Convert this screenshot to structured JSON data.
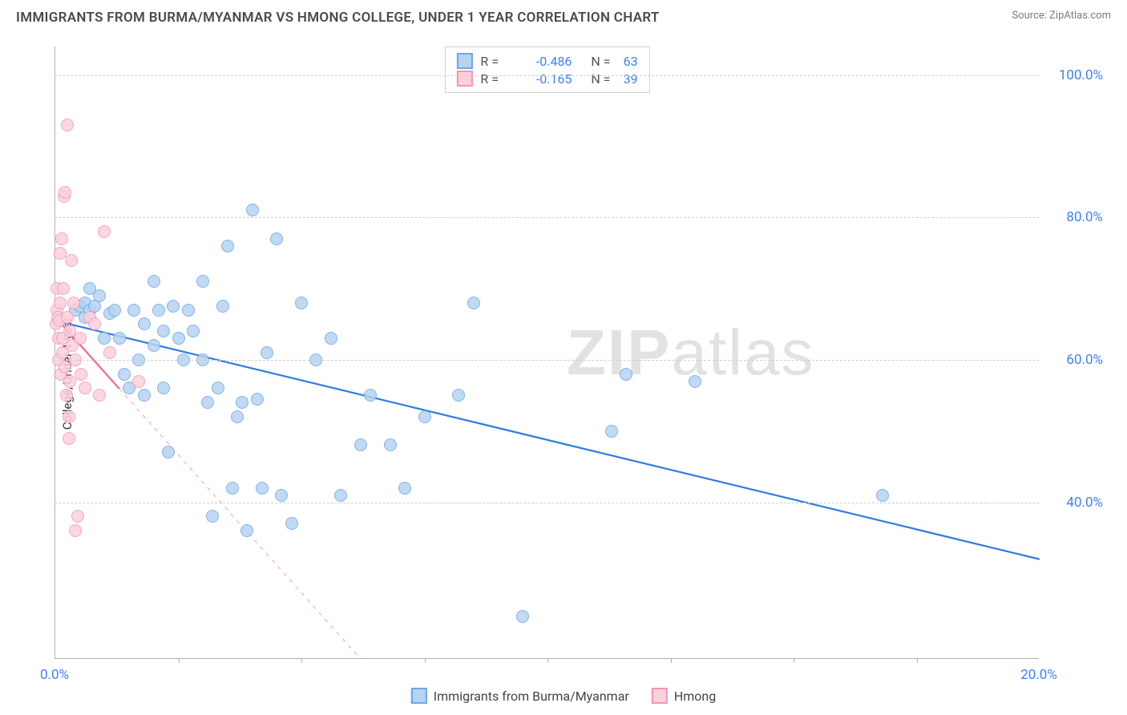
{
  "title": "IMMIGRANTS FROM BURMA/MYANMAR VS HMONG COLLEGE, UNDER 1 YEAR CORRELATION CHART",
  "source": "Source: ZipAtlas.com",
  "ylabel": "College, Under 1 year",
  "watermark": "ZIPatlas",
  "chart": {
    "type": "scatter",
    "background_color": "#ffffff",
    "grid_color": "#cfcfcf",
    "axis_color": "#b0b0b0",
    "xlim": [
      0,
      20
    ],
    "ylim": [
      18,
      104
    ],
    "xticks": [
      {
        "v": 0,
        "label": "0.0%"
      },
      {
        "v": 20,
        "label": "20.0%"
      }
    ],
    "yticks": [
      {
        "v": 40,
        "label": "40.0%"
      },
      {
        "v": 60,
        "label": "60.0%"
      },
      {
        "v": 80,
        "label": "80.0%"
      },
      {
        "v": 100,
        "label": "100.0%"
      }
    ],
    "minor_x_ticks": [
      2.5,
      5,
      7.5,
      10,
      12.5,
      15,
      17.5
    ],
    "point_radius": 8,
    "point_border_width": 1.5,
    "series": [
      {
        "name": "Immigrants from Burma/Myanmar",
        "color_fill": "#b7d3f2",
        "color_stroke": "#6aa8e8",
        "trend_color": "#2f7de1",
        "trend_width": 2.2,
        "trend": {
          "x1": 0,
          "y1": 65.5,
          "x2": 20,
          "y2": 32
        },
        "trend_dash_after_x": null,
        "R": "-0.486",
        "N": "63",
        "points": [
          [
            0.4,
            67
          ],
          [
            0.5,
            67.5
          ],
          [
            0.6,
            68
          ],
          [
            0.6,
            66
          ],
          [
            0.7,
            67
          ],
          [
            0.7,
            70
          ],
          [
            0.8,
            67.5
          ],
          [
            0.9,
            69
          ],
          [
            1.0,
            63
          ],
          [
            1.1,
            66.5
          ],
          [
            1.2,
            67
          ],
          [
            1.3,
            63
          ],
          [
            1.4,
            58
          ],
          [
            1.5,
            56
          ],
          [
            1.6,
            67
          ],
          [
            1.7,
            60
          ],
          [
            1.8,
            55
          ],
          [
            1.8,
            65
          ],
          [
            2.0,
            71
          ],
          [
            2.0,
            62
          ],
          [
            2.1,
            67
          ],
          [
            2.2,
            56
          ],
          [
            2.2,
            64
          ],
          [
            2.3,
            47
          ],
          [
            2.4,
            67.5
          ],
          [
            2.5,
            63
          ],
          [
            2.6,
            60
          ],
          [
            2.7,
            67
          ],
          [
            2.8,
            64
          ],
          [
            3.0,
            71
          ],
          [
            3.0,
            60
          ],
          [
            3.1,
            54
          ],
          [
            3.2,
            38
          ],
          [
            3.3,
            56
          ],
          [
            3.4,
            67.5
          ],
          [
            3.5,
            76
          ],
          [
            3.6,
            42
          ],
          [
            3.7,
            52
          ],
          [
            3.8,
            54
          ],
          [
            3.9,
            36
          ],
          [
            4.0,
            81
          ],
          [
            4.1,
            54.5
          ],
          [
            4.2,
            42
          ],
          [
            4.3,
            61
          ],
          [
            4.5,
            77
          ],
          [
            4.6,
            41
          ],
          [
            4.8,
            37
          ],
          [
            5.0,
            68
          ],
          [
            5.3,
            60
          ],
          [
            5.6,
            63
          ],
          [
            5.8,
            41
          ],
          [
            6.2,
            48
          ],
          [
            6.4,
            55
          ],
          [
            6.8,
            48
          ],
          [
            7.1,
            42
          ],
          [
            7.5,
            52
          ],
          [
            8.2,
            55
          ],
          [
            8.5,
            68
          ],
          [
            9.5,
            24
          ],
          [
            11.3,
            50
          ],
          [
            11.6,
            58
          ],
          [
            13.0,
            57
          ],
          [
            16.8,
            41
          ]
        ]
      },
      {
        "name": "Hmong",
        "color_fill": "#fcd1dc",
        "color_stroke": "#f497b3",
        "trend_color": "#f16a92",
        "trend_width": 2.2,
        "trend": {
          "x1": 0,
          "y1": 66,
          "x2": 6.2,
          "y2": 18
        },
        "trend_dash_after_x": 1.3,
        "R": "-0.165",
        "N": "39",
        "points": [
          [
            0.02,
            65
          ],
          [
            0.03,
            67
          ],
          [
            0.04,
            70
          ],
          [
            0.05,
            66
          ],
          [
            0.06,
            63
          ],
          [
            0.07,
            60
          ],
          [
            0.08,
            65.5
          ],
          [
            0.1,
            75
          ],
          [
            0.1,
            68
          ],
          [
            0.12,
            58
          ],
          [
            0.13,
            77
          ],
          [
            0.14,
            63
          ],
          [
            0.15,
            61
          ],
          [
            0.16,
            70
          ],
          [
            0.18,
            83
          ],
          [
            0.2,
            83.5
          ],
          [
            0.2,
            59
          ],
          [
            0.22,
            55
          ],
          [
            0.25,
            66
          ],
          [
            0.25,
            93
          ],
          [
            0.27,
            49
          ],
          [
            0.28,
            52
          ],
          [
            0.3,
            64
          ],
          [
            0.3,
            57
          ],
          [
            0.32,
            74
          ],
          [
            0.35,
            62
          ],
          [
            0.38,
            68
          ],
          [
            0.4,
            60
          ],
          [
            0.4,
            36
          ],
          [
            0.45,
            38
          ],
          [
            0.5,
            63
          ],
          [
            0.52,
            58
          ],
          [
            0.6,
            56
          ],
          [
            0.7,
            66
          ],
          [
            0.8,
            65
          ],
          [
            0.9,
            55
          ],
          [
            1.0,
            78
          ],
          [
            1.1,
            61
          ],
          [
            1.7,
            57
          ]
        ]
      }
    ],
    "legend_bottom": [
      {
        "label": "Immigrants from Burma/Myanmar",
        "fill": "#b7d3f2",
        "stroke": "#6aa8e8"
      },
      {
        "label": "Hmong",
        "fill": "#fcd1dc",
        "stroke": "#f497b3"
      }
    ],
    "tick_font_color": "#3b82f6",
    "tick_font_size": 17
  }
}
